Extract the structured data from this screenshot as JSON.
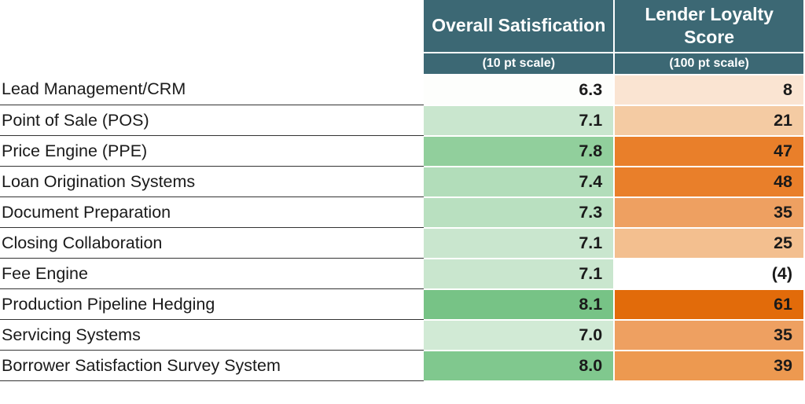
{
  "type": "table",
  "columns": {
    "satisfaction": {
      "title": "Overall Satisfication",
      "subtitle": "(10 pt scale)"
    },
    "loyalty": {
      "title": "Lender Loyalty Score",
      "subtitle": "(100 pt scale)"
    }
  },
  "header_bg": "#3c6874",
  "header_text_color": "#ffffff",
  "header_fontsize": 23,
  "subheader_fontsize": 16,
  "cell_fontsize": 21.5,
  "row_label_border_color": "#333333",
  "rows": [
    {
      "label": "Lead Management/CRM",
      "sat": "6.3",
      "sat_bg": "#fdfefc",
      "loy": "8",
      "loy_bg": "#fae4d2"
    },
    {
      "label": "Point of Sale (POS)",
      "sat": "7.1",
      "sat_bg": "#c9e6ce",
      "loy": "21",
      "loy_bg": "#f4cba3"
    },
    {
      "label": "Price Engine (PPE)",
      "sat": "7.8",
      "sat_bg": "#91cf9c",
      "loy": "47",
      "loy_bg": "#e97f2a"
    },
    {
      "label": "Loan Origination Systems",
      "sat": "7.4",
      "sat_bg": "#b2ddba",
      "loy": "48",
      "loy_bg": "#e97f2a"
    },
    {
      "label": "Document Preparation",
      "sat": "7.3",
      "sat_bg": "#b9e0c0",
      "loy": "35",
      "loy_bg": "#eea061"
    },
    {
      "label": "Closing Collaboration",
      "sat": "7.1",
      "sat_bg": "#c9e6ce",
      "loy": "25",
      "loy_bg": "#f3bf8f"
    },
    {
      "label": "Fee Engine",
      "sat": "7.1",
      "sat_bg": "#c9e6ce",
      "loy": "(4)",
      "loy_bg": "#ffffff"
    },
    {
      "label": "Production Pipeline Hedging",
      "sat": "8.1",
      "sat_bg": "#77c386",
      "loy": "61",
      "loy_bg": "#e26b0a"
    },
    {
      "label": "Servicing Systems",
      "sat": "7.0",
      "sat_bg": "#d1ead5",
      "loy": "35",
      "loy_bg": "#eea061"
    },
    {
      "label": "Borrower Satisfaction Survey System",
      "sat": "8.0",
      "sat_bg": "#80c88e",
      "loy": "39",
      "loy_bg": "#ed9950"
    }
  ]
}
